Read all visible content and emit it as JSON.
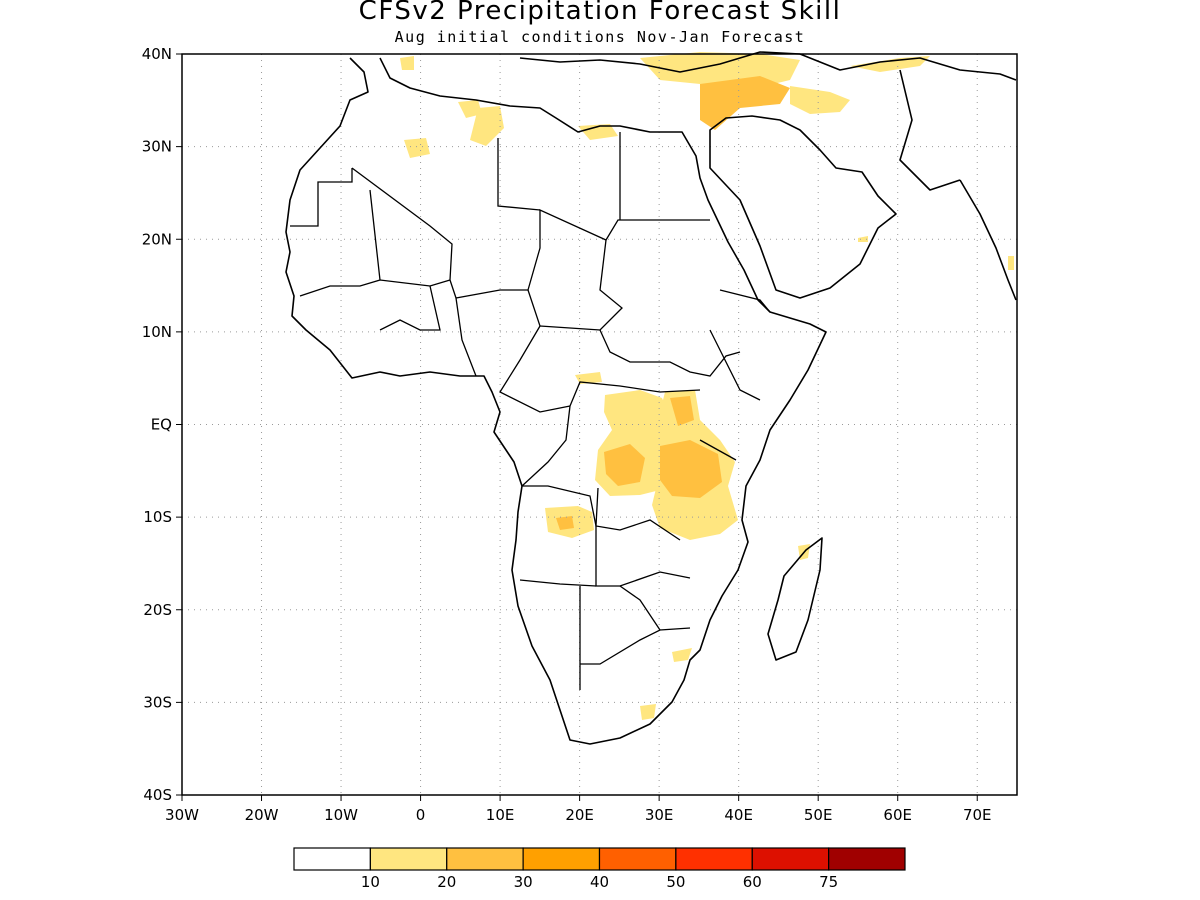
{
  "title": "CFSv2 Precipitation Forecast Skill",
  "subtitle": "Aug initial conditions  Nov-Jan Forecast",
  "map": {
    "region": "Africa",
    "lon_range": [
      -30,
      75
    ],
    "lat_range": [
      -40,
      40
    ],
    "grid": true,
    "lat_labels": [
      "40N",
      "30N",
      "20N",
      "10N",
      "EQ",
      "10S",
      "20S",
      "30S",
      "40S"
    ],
    "lon_labels": [
      "30W",
      "20W",
      "10W",
      "0",
      "10E",
      "20E",
      "30E",
      "40E",
      "50E",
      "60E",
      "70E"
    ]
  },
  "colorbar": {
    "bins": [
      {
        "color": "#ffffff"
      },
      {
        "color": "#ffe680"
      },
      {
        "color": "#ffc040"
      },
      {
        "color": "#ffa000"
      },
      {
        "color": "#ff6000"
      },
      {
        "color": "#ff3000"
      },
      {
        "color": "#dd1000"
      },
      {
        "color": "#a00000"
      }
    ],
    "labels": [
      "10",
      "20",
      "30",
      "40",
      "50",
      "60",
      "75"
    ]
  }
}
